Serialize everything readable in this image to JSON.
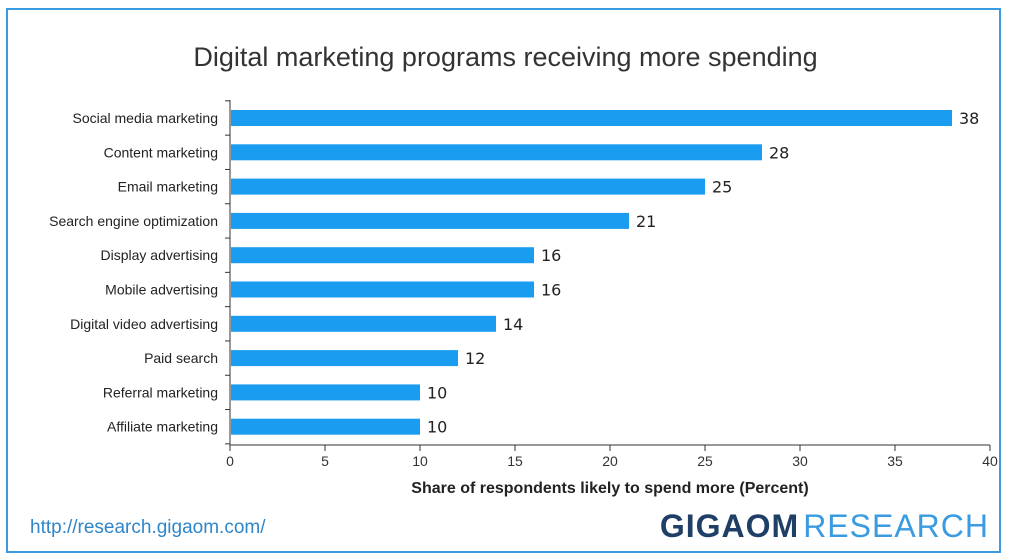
{
  "title": "Digital marketing programs receiving more spending",
  "footer": {
    "url": "http://research.gigaom.com/",
    "logo_bold": "GIGAOM",
    "logo_light": "RESEARCH"
  },
  "colors": {
    "bar": "#1a9cf0",
    "frame": "#3a9be0"
  },
  "chart_data": {
    "type": "bar",
    "orientation": "horizontal",
    "title": "Digital marketing programs receiving more spending",
    "xlabel": "Share of respondents likely to spend more (Percent)",
    "ylabel": "",
    "xlim": [
      0,
      40
    ],
    "xticks": [
      0,
      5,
      10,
      15,
      20,
      25,
      30,
      35,
      40
    ],
    "grid": false,
    "categories": [
      "Social media marketing",
      "Content marketing",
      "Email marketing",
      "Search engine optimization",
      "Display advertising",
      "Mobile advertising",
      "Digital video advertising",
      "Paid search",
      "Referral marketing",
      "Affiliate marketing"
    ],
    "values": [
      38,
      28,
      25,
      21,
      16,
      16,
      14,
      12,
      10,
      10
    ]
  }
}
